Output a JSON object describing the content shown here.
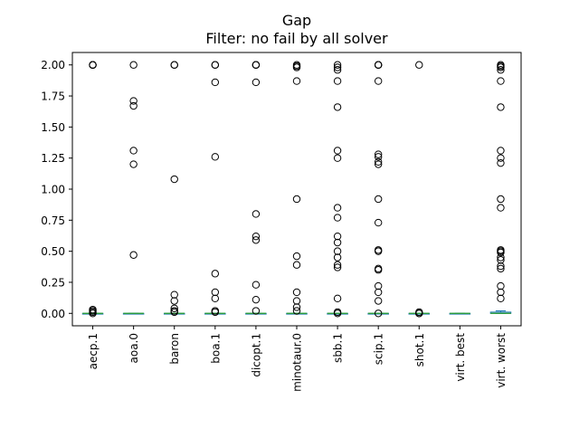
{
  "chart_data": {
    "type": "box",
    "title": "Gap",
    "subtitle": "Filter: no fail by all solver",
    "xlabel": "",
    "ylabel": "",
    "ylim": [
      -0.1,
      2.1
    ],
    "yticks": [
      0.0,
      0.25,
      0.5,
      0.75,
      1.0,
      1.25,
      1.5,
      1.75,
      2.0
    ],
    "ytick_labels": [
      "0.00",
      "0.25",
      "0.50",
      "0.75",
      "1.00",
      "1.25",
      "1.50",
      "1.75",
      "2.00"
    ],
    "grid": false,
    "categories": [
      "aecp.1",
      "aoa.0",
      "baron",
      "boa.1",
      "dicopt.1",
      "minotaur.0",
      "sbb.1",
      "scip.1",
      "shot.1",
      "virt. best",
      "virt. worst"
    ],
    "series": [
      {
        "q1": 0.0,
        "median": 0.0,
        "q3": 0.0,
        "whisker_low": 0.0,
        "whisker_high": 0.0,
        "outliers": [
          2.0,
          2.0,
          2.0,
          2.0,
          0.03,
          0.02,
          0.01,
          0.0
        ]
      },
      {
        "q1": 0.0,
        "median": 0.0,
        "q3": 0.0,
        "whisker_low": 0.0,
        "whisker_high": 0.0,
        "outliers": [
          2.0,
          1.71,
          1.67,
          1.31,
          1.2,
          0.47
        ]
      },
      {
        "q1": 0.0,
        "median": 0.0,
        "q3": 0.0,
        "whisker_low": 0.0,
        "whisker_high": 0.0,
        "outliers": [
          2.0,
          2.0,
          1.08,
          0.15,
          0.1,
          0.04,
          0.02,
          0.01
        ]
      },
      {
        "q1": 0.0,
        "median": 0.0,
        "q3": 0.0,
        "whisker_low": 0.0,
        "whisker_high": 0.0,
        "outliers": [
          2.0,
          2.0,
          1.86,
          1.26,
          0.32,
          0.17,
          0.12,
          0.02,
          0.01
        ]
      },
      {
        "q1": 0.0,
        "median": 0.0,
        "q3": 0.0,
        "whisker_low": 0.0,
        "whisker_high": 0.0,
        "outliers": [
          2.0,
          2.0,
          2.0,
          1.86,
          0.8,
          0.62,
          0.59,
          0.23,
          0.11,
          0.02
        ]
      },
      {
        "q1": 0.0,
        "median": 0.0,
        "q3": 0.0,
        "whisker_low": 0.0,
        "whisker_high": 0.0,
        "outliers": [
          2.0,
          1.99,
          1.98,
          1.87,
          0.92,
          0.46,
          0.39,
          0.17,
          0.1,
          0.05,
          0.02
        ]
      },
      {
        "q1": 0.0,
        "median": 0.0,
        "q3": 0.0,
        "whisker_low": 0.0,
        "whisker_high": 0.0,
        "outliers": [
          2.0,
          1.98,
          1.96,
          1.87,
          1.66,
          1.31,
          1.25,
          0.85,
          0.77,
          0.62,
          0.57,
          0.5,
          0.45,
          0.39,
          0.37,
          0.12,
          0.01,
          0.0
        ]
      },
      {
        "q1": 0.0,
        "median": 0.0,
        "q3": 0.0,
        "whisker_low": 0.0,
        "whisker_high": 0.0,
        "outliers": [
          2.0,
          2.0,
          2.0,
          1.87,
          1.28,
          1.26,
          1.22,
          1.2,
          0.92,
          0.73,
          0.51,
          0.5,
          0.36,
          0.35,
          0.22,
          0.17,
          0.1,
          0.0
        ]
      },
      {
        "q1": 0.0,
        "median": 0.0,
        "q3": 0.0,
        "whisker_low": 0.0,
        "whisker_high": 0.0,
        "outliers": [
          2.0,
          0.01,
          0.0,
          0.0
        ]
      },
      {
        "q1": 0.0,
        "median": 0.0,
        "q3": 0.0,
        "whisker_low": 0.0,
        "whisker_high": 0.0,
        "outliers": []
      },
      {
        "q1": 0.0,
        "median": 0.0,
        "q3": 0.01,
        "whisker_low": 0.0,
        "whisker_high": 0.02,
        "outliers": [
          2.0,
          1.99,
          1.98,
          1.96,
          1.87,
          1.66,
          1.31,
          1.25,
          1.21,
          0.92,
          0.85,
          0.51,
          0.5,
          0.49,
          0.45,
          0.43,
          0.38,
          0.36,
          0.22,
          0.17,
          0.12
        ]
      }
    ],
    "colors": {
      "box": "#1f77b4",
      "median": "#2ca02c",
      "outlier": "#000000",
      "axis": "#000000"
    }
  }
}
